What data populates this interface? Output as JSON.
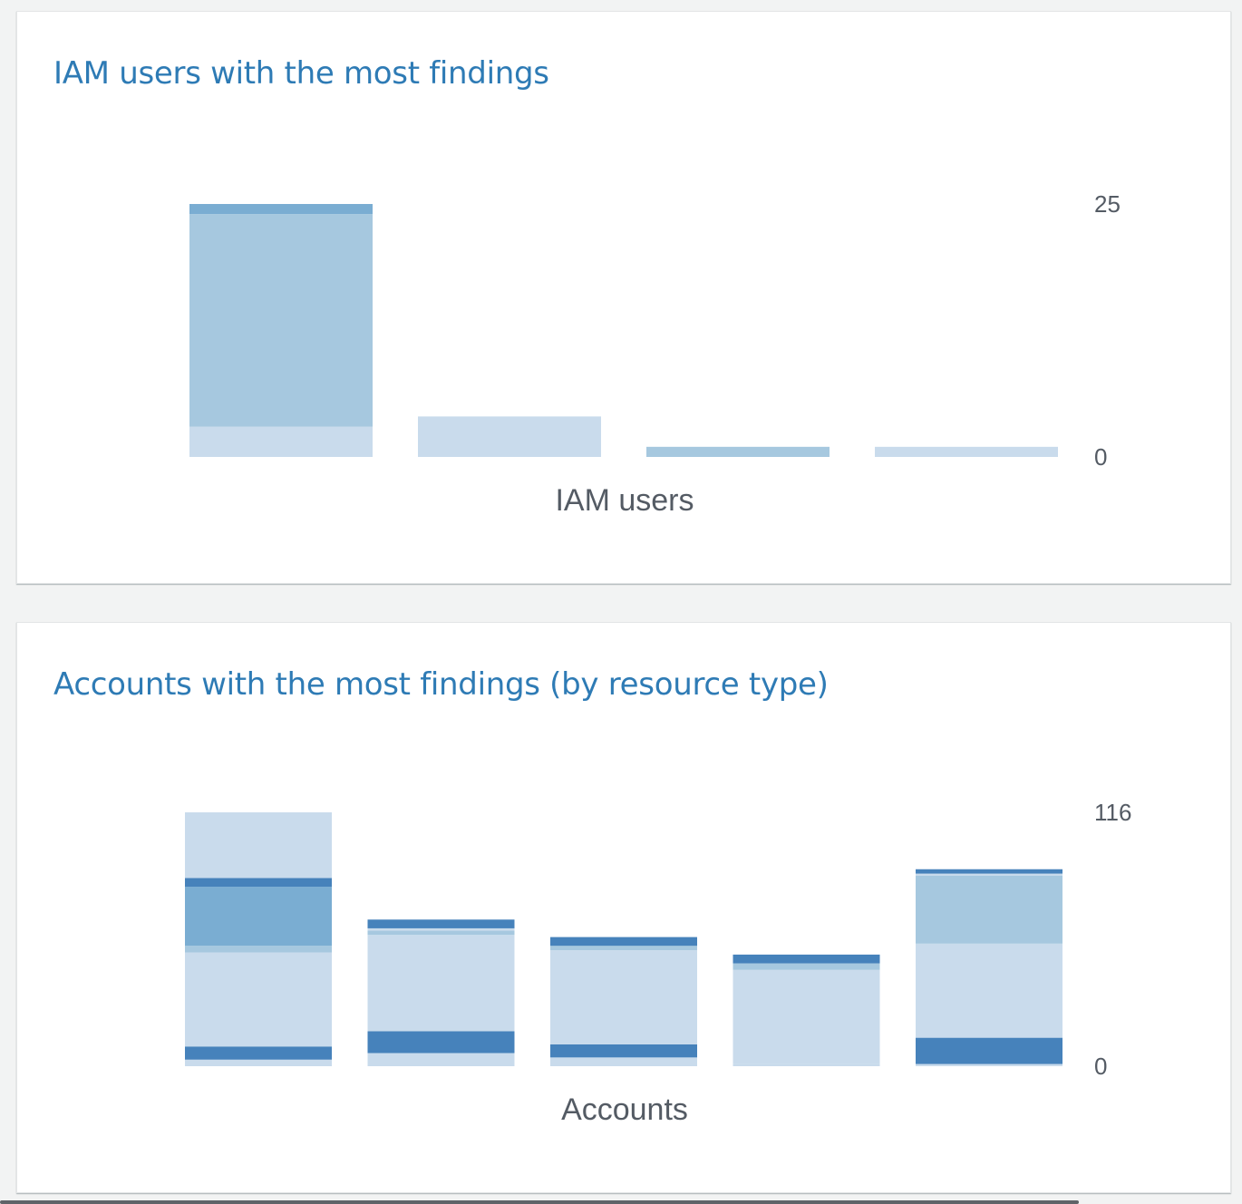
{
  "palette": {
    "title": "#2e7bb5",
    "seg_lightest": "#c9dbec",
    "seg_light": "#a6c8df",
    "seg_mid": "#7aadd2",
    "seg_dark": "#4682bb"
  },
  "iam_card": {
    "title": "IAM users with the most findings",
    "chart_data": {
      "type": "bar",
      "stacked": true,
      "title": "IAM users with the most findings",
      "xlabel": "IAM users",
      "ylabel": "",
      "ylim": [
        0,
        25
      ],
      "y_ticks": [
        "25",
        "0"
      ],
      "y_axis_side": "right",
      "categories": [
        "",
        "",
        "",
        ""
      ],
      "series": [
        {
          "color": "#c9dbec",
          "values": [
            3,
            4,
            0,
            1
          ]
        },
        {
          "color": "#a6c8df",
          "values": [
            21,
            0,
            1,
            0
          ]
        },
        {
          "color": "#7aadd2",
          "values": [
            1,
            0,
            0,
            0
          ]
        }
      ]
    }
  },
  "accounts_card": {
    "title": "Accounts with the most findings (by resource type)",
    "chart_data": {
      "type": "bar",
      "stacked": true,
      "title": "Accounts with the most findings (by resource type)",
      "xlabel": "Accounts",
      "ylabel": "",
      "ylim": [
        0,
        116
      ],
      "y_ticks": [
        "116",
        "0"
      ],
      "y_axis_side": "right",
      "categories": [
        "",
        "",
        "",
        "",
        ""
      ],
      "series": [
        {
          "color": "#c9dbec",
          "values": [
            3,
            6,
            4,
            1,
            1
          ]
        },
        {
          "color": "#4682bb",
          "values": [
            6,
            10,
            6,
            0,
            12
          ]
        },
        {
          "color": "#c9dbec",
          "values": [
            43,
            44,
            43,
            43,
            43
          ]
        },
        {
          "color": "#a6c8df",
          "values": [
            3,
            0,
            0,
            0,
            0
          ]
        },
        {
          "color": "#7aadd2",
          "values": [
            27,
            0,
            0,
            0,
            0
          ]
        },
        {
          "color": "#a6c8df",
          "values": [
            0,
            2,
            2,
            3,
            31
          ]
        },
        {
          "color": "#c9dbec",
          "values": [
            0,
            1,
            0,
            0,
            1
          ]
        },
        {
          "color": "#4682bb",
          "values": [
            4,
            4,
            4,
            4,
            2
          ]
        },
        {
          "color": "#c9dbec",
          "values": [
            30,
            0,
            0,
            0,
            0
          ]
        }
      ]
    }
  }
}
